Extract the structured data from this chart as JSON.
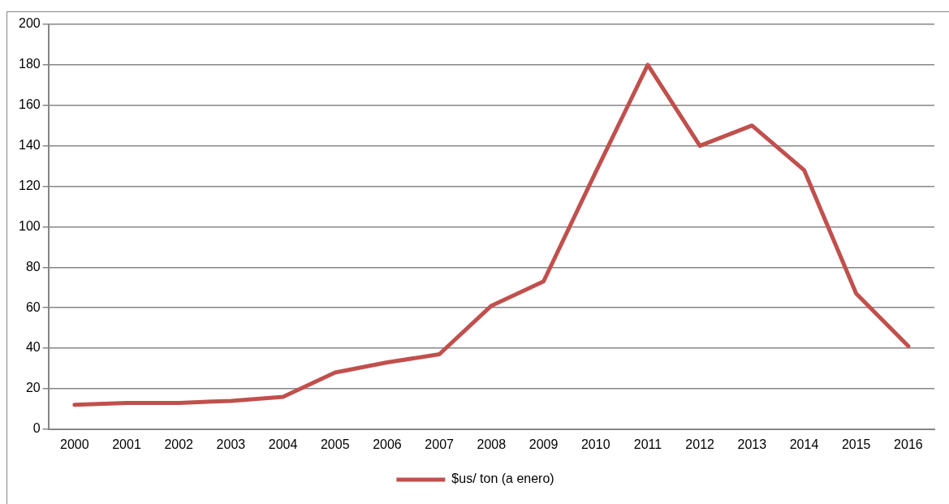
{
  "chart_data": {
    "type": "line",
    "categories": [
      "2000",
      "2001",
      "2002",
      "2003",
      "2004",
      "2005",
      "2006",
      "2007",
      "2008",
      "2009",
      "2010",
      "2011",
      "2012",
      "2013",
      "2014",
      "2015",
      "2016"
    ],
    "series": [
      {
        "name": "$us/ ton (a enero)",
        "color": "#c0504d",
        "values": [
          12,
          13,
          13,
          14,
          16,
          28,
          33,
          37,
          61,
          73,
          127,
          180,
          140,
          150,
          128,
          67,
          41
        ]
      }
    ],
    "ylim": [
      0,
      200
    ],
    "yticks": [
      0,
      20,
      40,
      60,
      80,
      100,
      120,
      140,
      160,
      180,
      200
    ],
    "grid": "y",
    "legend": "bottom",
    "marker": "none",
    "line_style": "solid"
  }
}
